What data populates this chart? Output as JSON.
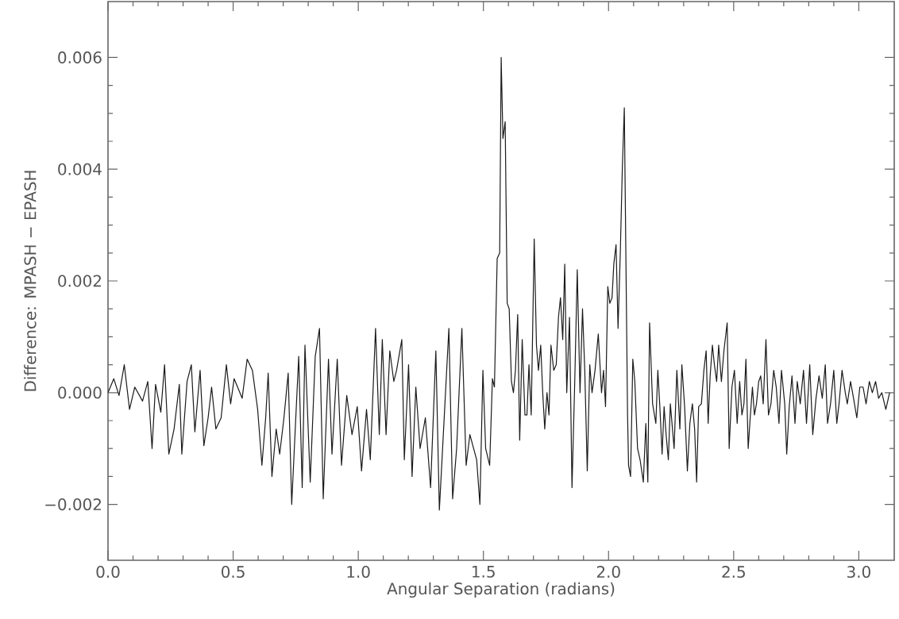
{
  "chart_data": {
    "type": "line",
    "xlabel": "Angular Separation (radians)",
    "ylabel": "Difference: MPASH − EPASH",
    "marker": "none",
    "color": "#1a1a1a",
    "xlim": [
      0,
      3.1416
    ],
    "ylim": [
      -0.003,
      0.007
    ],
    "xticks": [
      {
        "value": 0,
        "label": "0.0"
      },
      {
        "value": 0.5,
        "label": "0.5"
      },
      {
        "value": 1,
        "label": "1.0"
      },
      {
        "value": 1.5,
        "label": "1.5"
      },
      {
        "value": 2,
        "label": "2.0"
      },
      {
        "value": 2.5,
        "label": "2.5"
      },
      {
        "value": 3,
        "label": "3.0"
      }
    ],
    "yticks": [
      {
        "value": -0.002,
        "label": "−0.002"
      },
      {
        "value": 0,
        "label": "0.000"
      },
      {
        "value": 0.002,
        "label": "0.002"
      },
      {
        "value": 0.004,
        "label": "0.004"
      },
      {
        "value": 0.006,
        "label": "0.006"
      }
    ],
    "x": [
      0.0,
      0.023,
      0.044,
      0.065,
      0.086,
      0.107,
      0.138,
      0.159,
      0.176,
      0.19,
      0.211,
      0.226,
      0.243,
      0.264,
      0.285,
      0.295,
      0.316,
      0.333,
      0.347,
      0.368,
      0.383,
      0.4,
      0.414,
      0.431,
      0.452,
      0.473,
      0.49,
      0.504,
      0.536,
      0.556,
      0.577,
      0.598,
      0.615,
      0.63,
      0.64,
      0.655,
      0.672,
      0.686,
      0.703,
      0.72,
      0.734,
      0.745,
      0.762,
      0.776,
      0.787,
      0.808,
      0.828,
      0.845,
      0.86,
      0.881,
      0.895,
      0.916,
      0.933,
      0.954,
      0.975,
      0.996,
      1.013,
      1.033,
      1.048,
      1.069,
      1.084,
      1.096,
      1.111,
      1.126,
      1.142,
      1.153,
      1.174,
      1.184,
      1.201,
      1.215,
      1.23,
      1.247,
      1.268,
      1.289,
      1.31,
      1.324,
      1.341,
      1.362,
      1.377,
      1.393,
      1.414,
      1.431,
      1.446,
      1.473,
      1.486,
      1.498,
      1.509,
      1.525,
      1.536,
      1.544,
      1.555,
      1.565,
      1.571,
      1.578,
      1.587,
      1.595,
      1.603,
      1.612,
      1.62,
      1.628,
      1.637,
      1.645,
      1.655,
      1.666,
      1.674,
      1.682,
      1.691,
      1.703,
      1.712,
      1.72,
      1.729,
      1.737,
      1.745,
      1.754,
      1.762,
      1.77,
      1.781,
      1.791,
      1.8,
      1.808,
      1.817,
      1.825,
      1.833,
      1.844,
      1.854,
      1.865,
      1.875,
      1.886,
      1.896,
      1.905,
      1.915,
      1.925,
      1.934,
      1.946,
      1.959,
      1.972,
      1.98,
      1.988,
      1.997,
      2.005,
      2.014,
      2.021,
      2.03,
      2.038,
      2.047,
      2.055,
      2.063,
      2.076,
      2.08,
      2.088,
      2.097,
      2.105,
      2.116,
      2.126,
      2.139,
      2.149,
      2.157,
      2.164,
      2.176,
      2.189,
      2.197,
      2.205,
      2.214,
      2.222,
      2.23,
      2.239,
      2.247,
      2.262,
      2.273,
      2.285,
      2.293,
      2.304,
      2.315,
      2.325,
      2.335,
      2.344,
      2.352,
      2.36,
      2.371,
      2.381,
      2.39,
      2.398,
      2.406,
      2.415,
      2.423,
      2.432,
      2.44,
      2.451,
      2.461,
      2.474,
      2.482,
      2.493,
      2.503,
      2.514,
      2.524,
      2.533,
      2.541,
      2.549,
      2.558,
      2.566,
      2.575,
      2.583,
      2.591,
      2.6,
      2.608,
      2.618,
      2.629,
      2.639,
      2.649,
      2.66,
      2.67,
      2.681,
      2.691,
      2.704,
      2.712,
      2.722,
      2.733,
      2.745,
      2.754,
      2.766,
      2.779,
      2.791,
      2.804,
      2.816,
      2.829,
      2.841,
      2.854,
      2.866,
      2.875,
      2.887,
      2.9,
      2.912,
      2.921,
      2.933,
      2.946,
      2.954,
      2.967,
      2.979,
      2.992,
      3.004,
      3.017,
      3.029,
      3.042,
      3.054,
      3.067,
      3.079,
      3.092,
      3.108,
      3.123
    ],
    "values": [
      0,
      0.00025,
      -5e-05,
      0.0005,
      -0.0003,
      0.0001,
      -0.00015,
      0.0002,
      -0.001,
      0.00015,
      -0.00035,
      0.0005,
      -0.0011,
      -0.00065,
      0.00015,
      -0.0011,
      0.0002,
      0.0005,
      -0.0007,
      0.0004,
      -0.00095,
      -0.00045,
      0.0001,
      -0.00065,
      -0.00045,
      0.0005,
      -0.0002,
      0.00025,
      -0.0001,
      0.0006,
      0.0004,
      -0.0003,
      -0.0013,
      -0.00045,
      0.00035,
      -0.0015,
      -0.00065,
      -0.0011,
      -0.00045,
      0.00035,
      -0.002,
      -0.00095,
      0.00065,
      -0.0017,
      0.00085,
      -0.0016,
      0.00065,
      0.00115,
      -0.0019,
      0.0006,
      -0.0011,
      0.0006,
      -0.0013,
      -5e-05,
      -0.00075,
      -0.00025,
      -0.0014,
      -0.0003,
      -0.0012,
      0.00115,
      -0.00075,
      0.00095,
      -0.00075,
      0.00075,
      0.0002,
      0.0004,
      0.00095,
      -0.0012,
      0.0005,
      -0.0015,
      0.0001,
      -0.001,
      -0.00045,
      -0.0017,
      0.00075,
      -0.0021,
      -0.00065,
      0.00115,
      -0.0019,
      -0.001,
      0.00115,
      -0.0013,
      -0.00075,
      -0.0012,
      -0.002,
      0.0004,
      -0.001,
      -0.0013,
      0.00025,
      0.0001,
      0.0024,
      0.0025,
      0.006,
      0.00455,
      0.00485,
      0.0016,
      0.0015,
      0.0002,
      0,
      0.0004,
      0.0014,
      -0.00085,
      0.00095,
      -0.0004,
      -0.0004,
      0.0005,
      -0.0004,
      0.00275,
      0.00085,
      0.0004,
      0.00085,
      0,
      -0.00065,
      0,
      -0.0004,
      0.00085,
      0.0004,
      0.0005,
      0.00135,
      0.0017,
      0.00095,
      0.0023,
      0,
      0.00135,
      -0.0017,
      0.0002,
      0.0022,
      0,
      0.0015,
      0.0004,
      -0.0014,
      0.0005,
      0,
      0.0004,
      0.00105,
      0,
      0.0004,
      -0.00025,
      0.0019,
      0.0016,
      0.0017,
      0.0023,
      0.00265,
      0.00115,
      0.0025,
      0.004,
      0.0051,
      -0.0004,
      -0.0013,
      -0.0015,
      0.0006,
      0.0002,
      -0.001,
      -0.0012,
      -0.0016,
      -0.00055,
      -0.0016,
      0.00125,
      -0.0002,
      -0.00055,
      0.0004,
      -0.00025,
      -0.0011,
      -0.00025,
      -0.00075,
      -0.0012,
      -0.0002,
      -0.001,
      0.0004,
      -0.00065,
      0.0005,
      -0.00025,
      -0.0014,
      -0.00055,
      -0.0002,
      -0.00065,
      -0.0016,
      -0.00025,
      -0.0002,
      0.0004,
      0.00075,
      -0.00055,
      0.0003,
      0.00085,
      0.0005,
      0.0002,
      0.00085,
      0.0002,
      0.00075,
      0.00125,
      -0.001,
      0.0001,
      0.0004,
      -0.00055,
      0.0002,
      -0.0004,
      -0.0002,
      0.0006,
      -0.001,
      -0.00045,
      0.0001,
      -0.0004,
      -0.0002,
      0.0002,
      0.0003,
      -0.0002,
      0.00095,
      -0.0004,
      -0.0002,
      0.0004,
      0.0001,
      -0.00055,
      0.0004,
      -0.0002,
      -0.0011,
      -0.00025,
      0.0003,
      -0.00055,
      0.0002,
      -0.0002,
      0.0004,
      -0.00055,
      0.0005,
      -0.00075,
      -0.0001,
      0.0003,
      -0.0001,
      0.0005,
      -0.00055,
      -0.0002,
      0.0004,
      -0.00055,
      -0.0002,
      0.0004,
      0,
      -0.0002,
      0.0002,
      -0.0001,
      -0.00045,
      0.0001,
      0.0001,
      -0.0002,
      0.0002,
      0,
      0.0002,
      -0.0001,
      0,
      -0.0003,
      0
    ]
  }
}
